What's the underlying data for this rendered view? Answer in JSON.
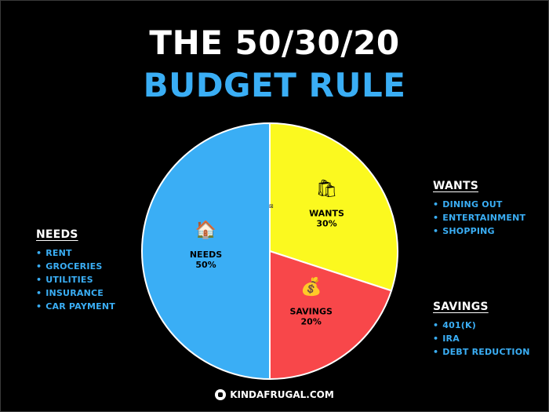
{
  "title": {
    "line1": "THE 50/30/20",
    "line2": "BUDGET RULE"
  },
  "colors": {
    "accent": "#3aaef5",
    "needs": "#3aaef5",
    "wants": "#fbf91f",
    "savings": "#f8474a",
    "text": "#ffffff"
  },
  "chart_data": {
    "type": "pie",
    "title": "THE 50/30/20 BUDGET RULE",
    "slices": [
      {
        "name": "WANTS",
        "value": 30,
        "label": "30%",
        "color": "#fbf91f",
        "icon": "shopping-bags-icon"
      },
      {
        "name": "SAVINGS",
        "value": 20,
        "label": "20%",
        "color": "#f8474a",
        "icon": "money-bag-icon"
      },
      {
        "name": "NEEDS",
        "value": 50,
        "label": "50%",
        "color": "#3aaef5",
        "icon": "house-icon"
      }
    ]
  },
  "legends": {
    "needs": {
      "title": "NEEDS",
      "items": [
        "RENT",
        "GROCERIES",
        "UTILITIES",
        "INSURANCE",
        "CAR PAYMENT"
      ]
    },
    "wants": {
      "title": "WANTS",
      "items": [
        "DINING OUT",
        "ENTERTAINMENT",
        "SHOPPING"
      ]
    },
    "savings": {
      "title": "SAVINGS",
      "items": [
        "401(K)",
        "IRA",
        "DEBT REDUCTION"
      ]
    }
  },
  "footer": {
    "text": "KINDAFRUGAL.COM",
    "icon": "kindafrugal-logo-icon"
  }
}
